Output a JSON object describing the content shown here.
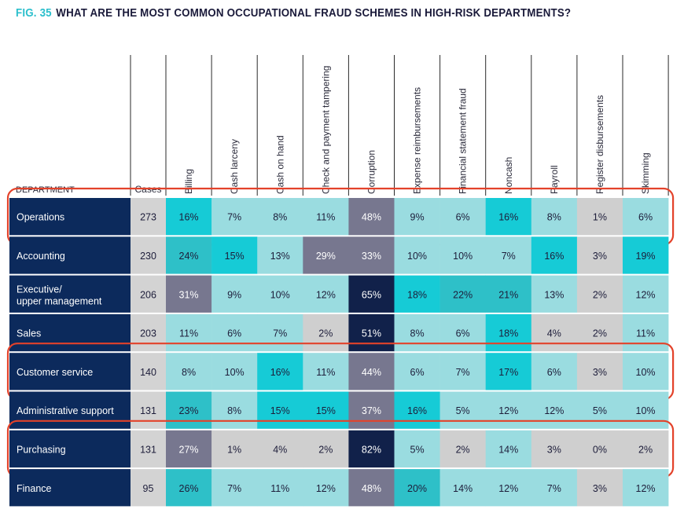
{
  "figure": {
    "fig_label": "FIG. 35",
    "title": "WHAT ARE THE MOST COMMON OCCUPATIONAL FRAUD SCHEMES IN HIGH-RISK DEPARTMENTS?"
  },
  "chart_data": {
    "type": "table",
    "title": "WHAT ARE THE MOST COMMON OCCUPATIONAL FRAUD SCHEMES IN HIGH-RISK DEPARTMENTS?",
    "row_header": "DEPARTMENT",
    "cases_header": "Cases",
    "columns": [
      "Billing",
      "Cash larceny",
      "Cash on hand",
      "Check and payment tampering",
      "Corruption",
      "Expense reimbursements",
      "Financial statement fraud",
      "Noncash",
      "Payroll",
      "Register disbursements",
      "Skimming"
    ],
    "rows": [
      {
        "department": "Operations",
        "cases": 273,
        "values": [
          16,
          7,
          8,
          11,
          48,
          9,
          6,
          16,
          8,
          1,
          6
        ],
        "highlighted": true
      },
      {
        "department": "Accounting",
        "cases": 230,
        "values": [
          24,
          15,
          13,
          29,
          33,
          10,
          10,
          7,
          16,
          3,
          19
        ],
        "highlighted": false
      },
      {
        "department": "Executive/upper management",
        "cases": 206,
        "values": [
          31,
          9,
          10,
          12,
          65,
          18,
          22,
          21,
          13,
          2,
          12
        ],
        "highlighted": false
      },
      {
        "department": "Sales",
        "cases": 203,
        "values": [
          11,
          6,
          7,
          2,
          51,
          8,
          6,
          18,
          4,
          2,
          11
        ],
        "highlighted": false
      },
      {
        "department": "Customer service",
        "cases": 140,
        "values": [
          8,
          10,
          16,
          11,
          44,
          6,
          7,
          17,
          6,
          3,
          10
        ],
        "highlighted": true
      },
      {
        "department": "Administrative support",
        "cases": 131,
        "values": [
          23,
          8,
          15,
          15,
          37,
          16,
          5,
          12,
          12,
          5,
          10
        ],
        "highlighted": false
      },
      {
        "department": "Purchasing",
        "cases": 131,
        "values": [
          27,
          1,
          4,
          2,
          82,
          5,
          2,
          14,
          3,
          0,
          2
        ],
        "highlighted": true
      },
      {
        "department": "Finance",
        "cases": 95,
        "values": [
          26,
          7,
          11,
          12,
          48,
          20,
          14,
          12,
          7,
          3,
          12
        ],
        "highlighted": false
      }
    ],
    "value_unit": "%"
  },
  "colors": {
    "dept_bg": "#0c2a5c",
    "cases_bg": "#d3d3d3",
    "light_teal": "#9adce0",
    "mid_teal": "#2ec0c8",
    "bright_teal": "#16cbd6",
    "gray": "#cfcfcf",
    "slate": "#77778f",
    "navy": "#11214a",
    "highlight_border": "#e3422a",
    "fig_accent": "#2bbfcc"
  }
}
